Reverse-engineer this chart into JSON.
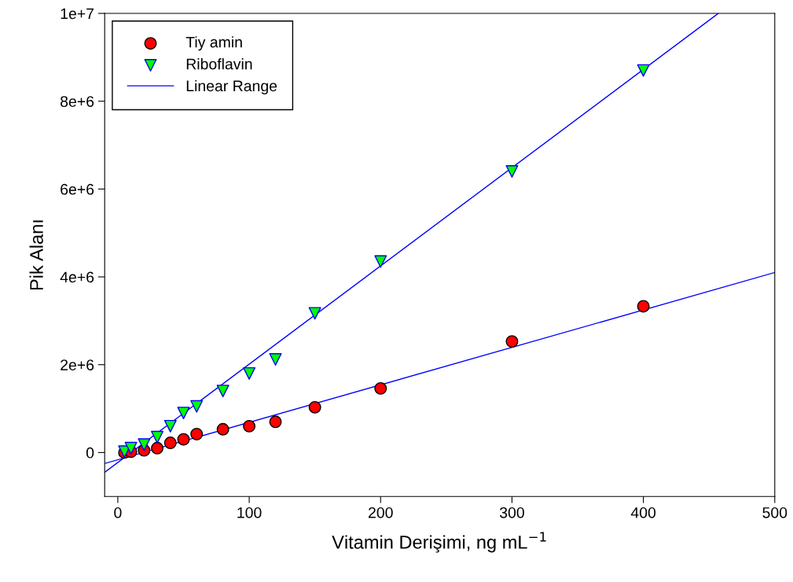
{
  "chart_data": {
    "type": "scatter",
    "xlabel": "Vitamin Derişimi, ng mL$^{−1}$",
    "ylabel": "Pik Alanı",
    "xlim": [
      -10,
      500
    ],
    "ylim": [
      -1000000,
      10000000
    ],
    "xticks": [
      0,
      100,
      200,
      300,
      400,
      500
    ],
    "yticks": [
      {
        "value": 0,
        "label": "0"
      },
      {
        "value": 2000000,
        "label": "2e+6"
      },
      {
        "value": 4000000,
        "label": "4e+6"
      },
      {
        "value": 6000000,
        "label": "6e+6"
      },
      {
        "value": 8000000,
        "label": "8e+6"
      },
      {
        "value": 10000000,
        "label": "1e+7"
      }
    ],
    "grid": false,
    "legend": "top left",
    "series": [
      {
        "name": "Tiy amin",
        "marker": "circle",
        "color": "#ff0000",
        "x": [
          5,
          10,
          20,
          30,
          40,
          50,
          60,
          80,
          100,
          120,
          150,
          200,
          300,
          400
        ],
        "values": [
          0,
          20000,
          50000,
          100000,
          220000,
          300000,
          420000,
          530000,
          600000,
          700000,
          1030000,
          1460000,
          2530000,
          3330000
        ]
      },
      {
        "name": "Riboflavin",
        "marker": "triangle",
        "color": "#00ff00",
        "x": [
          5,
          10,
          20,
          30,
          40,
          50,
          60,
          80,
          100,
          120,
          150,
          200,
          300,
          400
        ],
        "values": [
          20000,
          100000,
          180000,
          350000,
          600000,
          900000,
          1050000,
          1400000,
          1800000,
          2120000,
          3170000,
          4350000,
          6400000,
          8700000
        ]
      },
      {
        "name": "Linear Range",
        "type": "line",
        "marker": "none",
        "color": "#0000ff",
        "x": [
          -10,
          500
        ],
        "values": [
          -250000,
          4100000
        ]
      },
      {
        "type": "line",
        "marker": "none",
        "color": "#0000ff",
        "x": [
          -10,
          457
        ],
        "values": [
          -450000,
          10000000
        ]
      }
    ]
  }
}
